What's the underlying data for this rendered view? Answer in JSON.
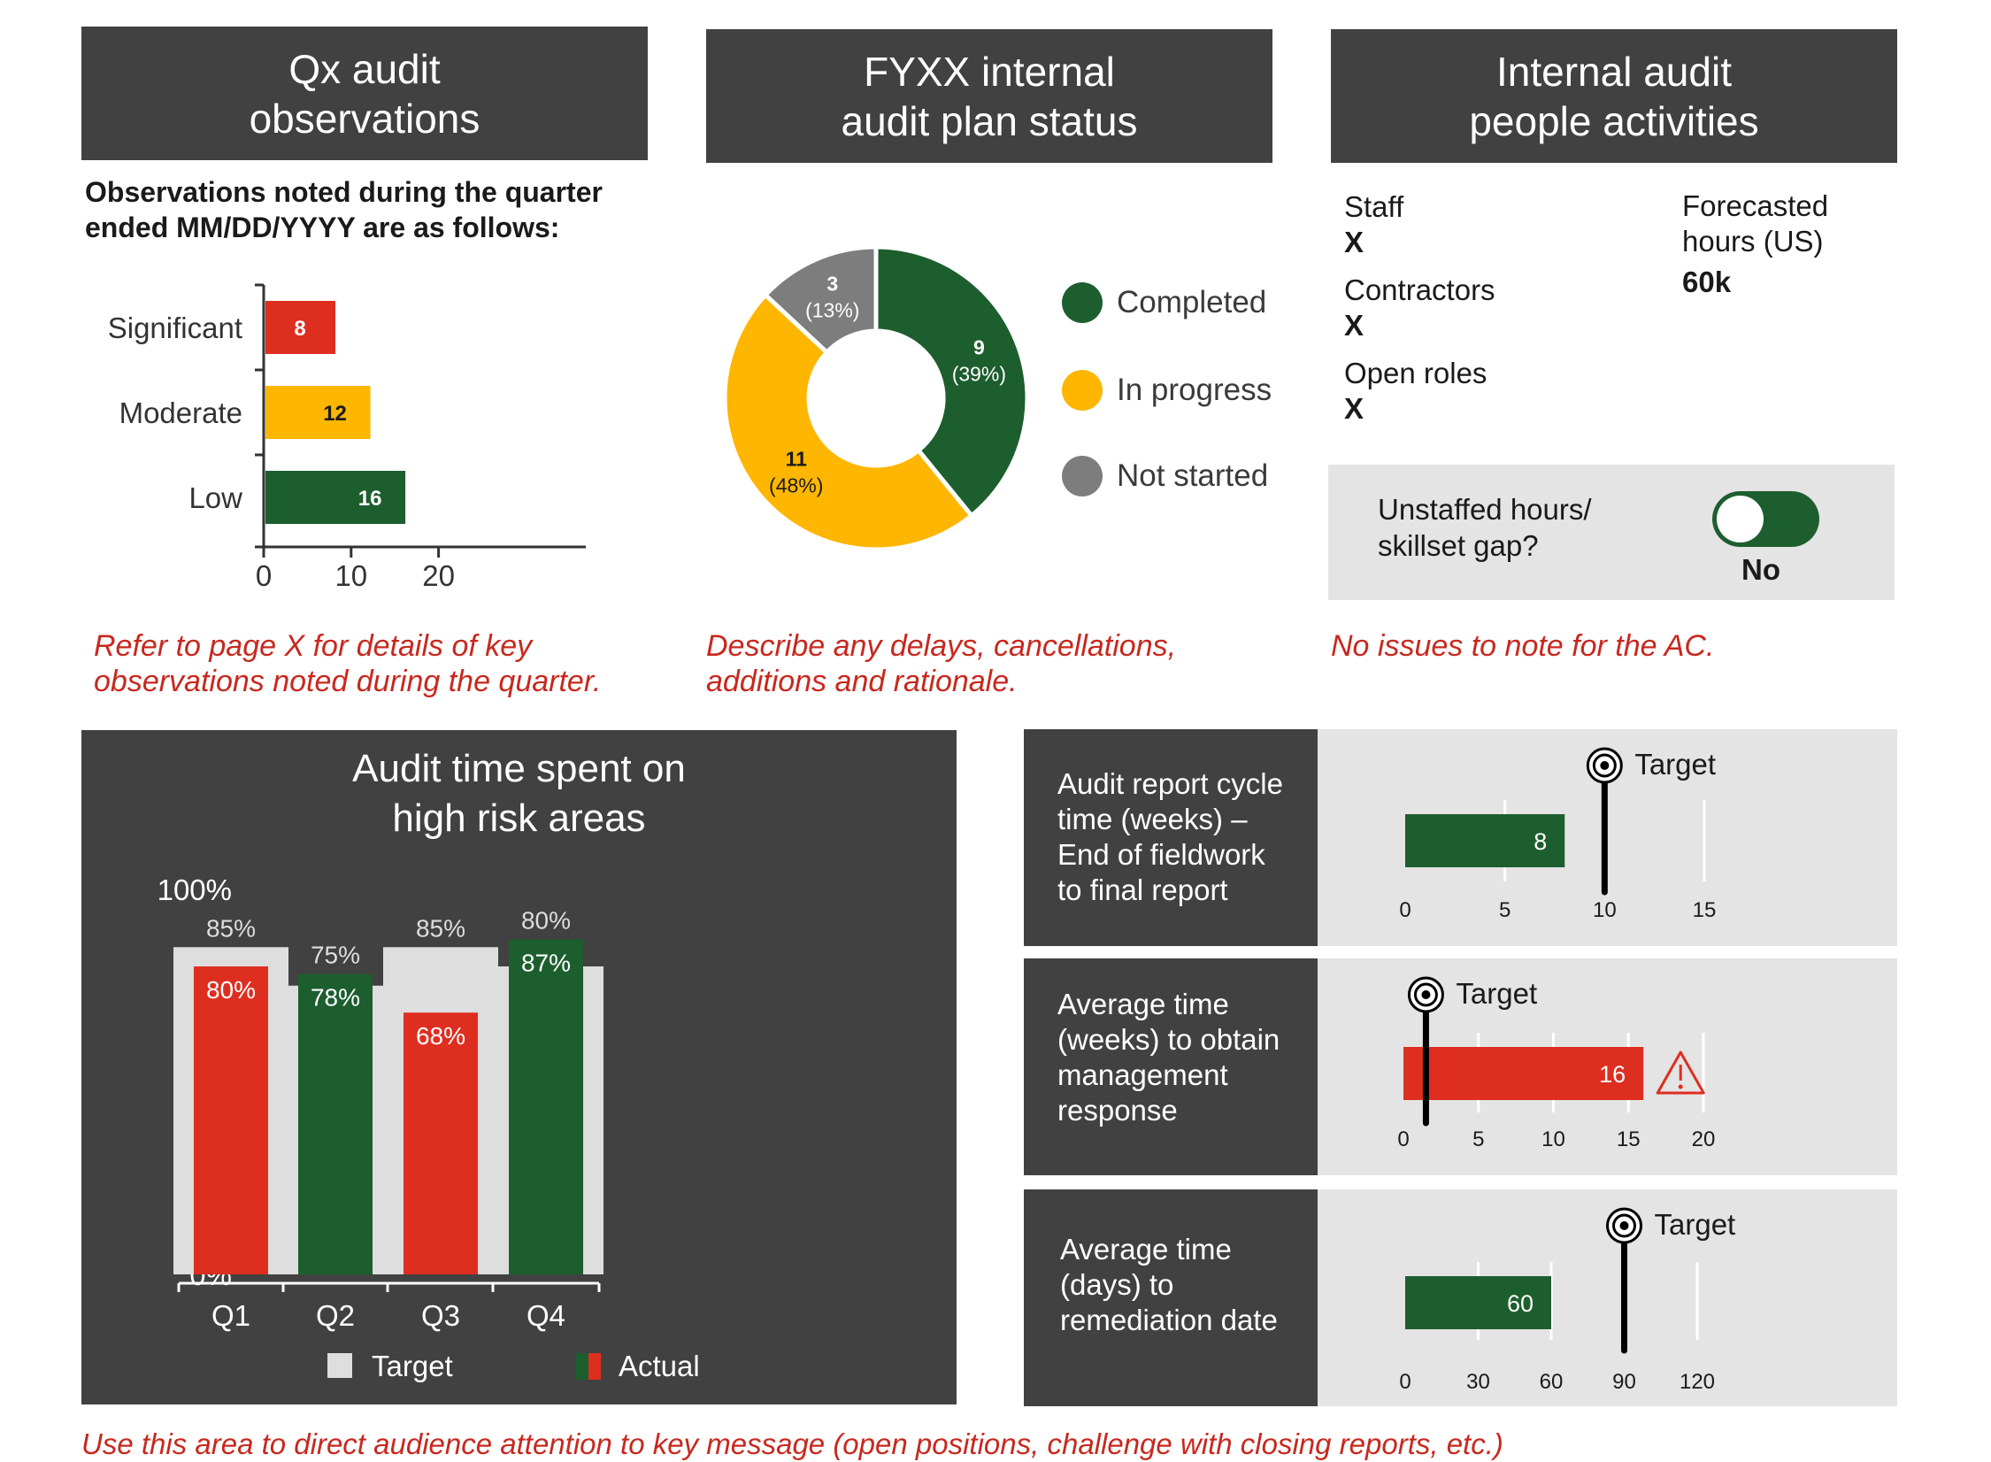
{
  "panels": {
    "observations": {
      "header": "Qx audit\nobservations",
      "intro": "Observations noted during the quarter\nended MM/DD/YYYY are as follows:",
      "note": "Refer to page X for details of key\nobservations noted during the quarter."
    },
    "plan": {
      "header": "FYXX internal\naudit plan status",
      "legend": [
        {
          "label": "Completed",
          "color": "#1d5e2e"
        },
        {
          "label": "In progress",
          "color": "#ffb600"
        },
        {
          "label": "Not started",
          "color": "#7d7d7d"
        }
      ],
      "note": "Describe any delays, cancellations,\nadditions and rationale."
    },
    "people": {
      "header": "Internal audit\npeople activities",
      "staff_label": "Staff",
      "staff_value": "X",
      "contractors_label": "Contractors",
      "contractors_value": "X",
      "open_roles_label": "Open roles",
      "open_roles_value": "X",
      "forecast_label": "Forecasted\nhours (US)",
      "forecast_value": "60k",
      "gap_label": "Unstaffed hours/\nskillset gap?",
      "gap_toggle_on": true,
      "gap_value": "No",
      "note": "No issues to note for the AC."
    }
  },
  "footer_note": "Use this area to direct audience attention to key message (open positions, challenge with closing reports, etc.)",
  "colors": {
    "red": "#de2e20",
    "amber": "#ffb600",
    "green": "#1d5e2e",
    "gray": "#7d7d7d",
    "dark": "#414141",
    "light": "#e4e4e4",
    "target_bar": "#dedede"
  },
  "chart_data": [
    {
      "id": "observations",
      "type": "bar",
      "orientation": "horizontal",
      "categories": [
        "Significant",
        "Moderate",
        "Low"
      ],
      "values": [
        8,
        12,
        16
      ],
      "value_labels": [
        "8",
        "12",
        "16"
      ],
      "colors": [
        "#de2e20",
        "#ffb600",
        "#1d5e2e"
      ],
      "xlim": [
        0,
        25
      ],
      "xticks": [
        "0",
        "10",
        "20"
      ]
    },
    {
      "id": "plan_status",
      "type": "pie",
      "donut": true,
      "categories": [
        "Completed",
        "In progress",
        "Not started"
      ],
      "values": [
        9,
        11,
        3
      ],
      "labels": [
        [
          "9",
          "(39%)"
        ],
        [
          "11",
          "(48%)"
        ],
        [
          "3",
          "(13%)"
        ]
      ],
      "colors": [
        "#1d5e2e",
        "#ffb600",
        "#7d7d7d"
      ]
    },
    {
      "id": "high_risk_time",
      "type": "bar",
      "title": "Audit time spent on\nhigh risk areas",
      "categories": [
        "Q1",
        "Q2",
        "Q3",
        "Q4"
      ],
      "series": [
        {
          "name": "Target",
          "values": [
            85,
            75,
            85,
            80
          ],
          "labels": [
            "85%",
            "75%",
            "85%",
            "80%"
          ]
        },
        {
          "name": "Actual",
          "values": [
            80,
            78,
            68,
            87
          ],
          "labels": [
            "80%",
            "78%",
            "68%",
            "87%"
          ],
          "colors": [
            "#de2e20",
            "#1d5e2e",
            "#de2e20",
            "#1d5e2e"
          ]
        }
      ],
      "ylim": [
        0,
        100
      ],
      "yticks": [
        "0%",
        "20%",
        "40%",
        "60%",
        "80%",
        "100%"
      ],
      "legend_position": "bottom"
    },
    {
      "id": "kpi_cycle_time",
      "type": "bar",
      "title": "Audit report cycle\ntime (weeks) –\nEnd of fieldwork\nto final report",
      "value": 8,
      "value_label": "8",
      "target": 10,
      "target_label": "Target",
      "color": "#1d5e2e",
      "warning": false,
      "xlim": [
        0,
        15
      ],
      "xticks": [
        "0",
        "5",
        "10",
        "15"
      ]
    },
    {
      "id": "kpi_mgmt_response",
      "type": "bar",
      "title": "Average time\n(weeks) to obtain\nmanagement\nresponse",
      "value": 16,
      "value_label": "16",
      "target": 1.5,
      "target_label": "Target",
      "color": "#de2e20",
      "warning": true,
      "xlim": [
        0,
        20
      ],
      "xticks": [
        "0",
        "5",
        "10",
        "15",
        "20"
      ]
    },
    {
      "id": "kpi_remediation",
      "type": "bar",
      "title": "Average time\n(days) to\nremediation date",
      "value": 60,
      "value_label": "60",
      "target": 90,
      "target_label": "Target",
      "color": "#1d5e2e",
      "warning": false,
      "xlim": [
        0,
        120
      ],
      "xticks": [
        "0",
        "30",
        "60",
        "90",
        "120"
      ]
    }
  ]
}
